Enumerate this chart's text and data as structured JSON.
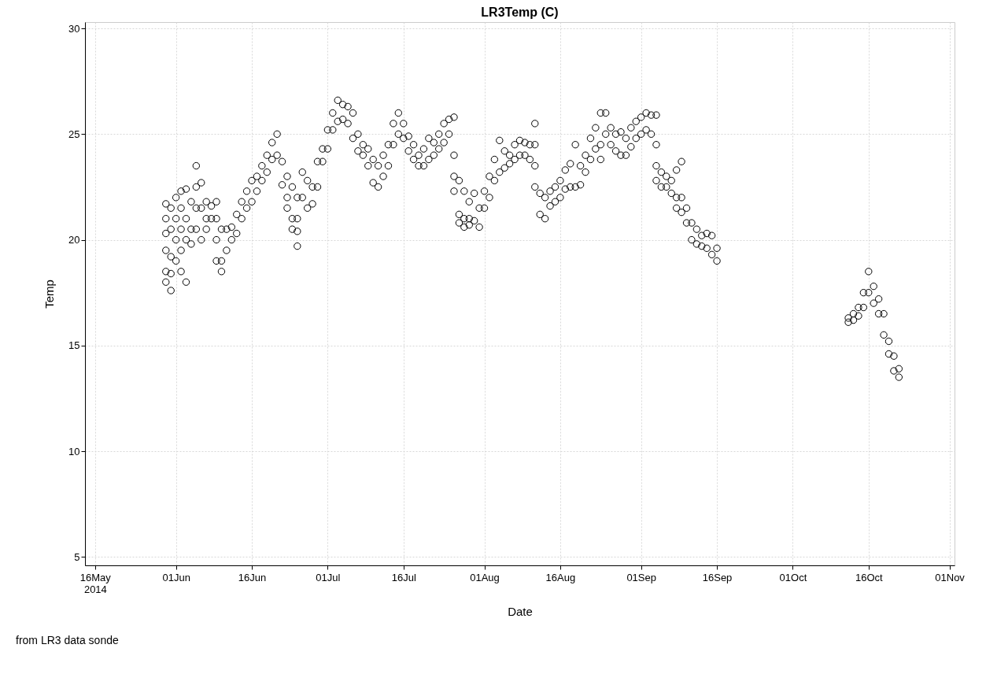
{
  "chart_data": {
    "type": "scatter",
    "title": "LR3Temp (C)",
    "xlabel": "Date",
    "ylabel": "Temp",
    "annotations": [
      "from LR3 data sonde"
    ],
    "xlim": [
      "2014-05-14",
      "2014-11-02"
    ],
    "ylim": [
      4.6,
      30.3
    ],
    "xticks": [
      {
        "value": "2014-05-16",
        "label": "16May 2014"
      },
      {
        "value": "2014-06-01",
        "label": "01Jun"
      },
      {
        "value": "2014-06-16",
        "label": "16Jun"
      },
      {
        "value": "2014-07-01",
        "label": "01Jul"
      },
      {
        "value": "2014-07-16",
        "label": "16Jul"
      },
      {
        "value": "2014-08-01",
        "label": "01Aug"
      },
      {
        "value": "2014-08-16",
        "label": "16Aug"
      },
      {
        "value": "2014-09-01",
        "label": "01Sep"
      },
      {
        "value": "2014-09-16",
        "label": "16Sep"
      },
      {
        "value": "2014-10-01",
        "label": "01Oct"
      },
      {
        "value": "2014-10-16",
        "label": "16Oct"
      },
      {
        "value": "2014-11-01",
        "label": "01Nov"
      }
    ],
    "yticks": [
      5,
      10,
      15,
      20,
      25,
      30
    ],
    "grid": true,
    "marker": "circle",
    "legend": false,
    "series": [
      {
        "color": "#000000",
        "x": [
          "2014-05-30",
          "2014-05-30",
          "2014-05-30",
          "2014-05-30",
          "2014-05-30",
          "2014-05-30",
          "2014-05-31",
          "2014-05-31",
          "2014-05-31",
          "2014-05-31",
          "2014-05-31",
          "2014-06-01",
          "2014-06-01",
          "2014-06-01",
          "2014-06-01",
          "2014-06-02",
          "2014-06-02",
          "2014-06-02",
          "2014-06-02",
          "2014-06-02",
          "2014-06-03",
          "2014-06-03",
          "2014-06-03",
          "2014-06-03",
          "2014-06-04",
          "2014-06-04",
          "2014-06-04",
          "2014-06-05",
          "2014-06-05",
          "2014-06-05",
          "2014-06-05",
          "2014-06-06",
          "2014-06-06",
          "2014-06-06",
          "2014-06-07",
          "2014-06-07",
          "2014-06-07",
          "2014-06-08",
          "2014-06-08",
          "2014-06-09",
          "2014-06-09",
          "2014-06-09",
          "2014-06-09",
          "2014-06-10",
          "2014-06-10",
          "2014-06-10",
          "2014-06-11",
          "2014-06-11",
          "2014-06-12",
          "2014-06-12",
          "2014-06-13",
          "2014-06-13",
          "2014-06-14",
          "2014-06-14",
          "2014-06-15",
          "2014-06-15",
          "2014-06-16",
          "2014-06-16",
          "2014-06-17",
          "2014-06-17",
          "2014-06-18",
          "2014-06-18",
          "2014-06-19",
          "2014-06-19",
          "2014-06-20",
          "2014-06-20",
          "2014-06-21",
          "2014-06-21",
          "2014-06-22",
          "2014-06-22",
          "2014-06-23",
          "2014-06-23",
          "2014-06-23",
          "2014-06-24",
          "2014-06-24",
          "2014-06-24",
          "2014-06-25",
          "2014-06-25",
          "2014-06-25",
          "2014-06-25",
          "2014-06-26",
          "2014-06-26",
          "2014-06-27",
          "2014-06-27",
          "2014-06-28",
          "2014-06-28",
          "2014-06-29",
          "2014-06-29",
          "2014-06-30",
          "2014-06-30",
          "2014-07-01",
          "2014-07-01",
          "2014-07-02",
          "2014-07-02",
          "2014-07-03",
          "2014-07-03",
          "2014-07-04",
          "2014-07-04",
          "2014-07-05",
          "2014-07-05",
          "2014-07-06",
          "2014-07-06",
          "2014-07-07",
          "2014-07-07",
          "2014-07-08",
          "2014-07-08",
          "2014-07-09",
          "2014-07-09",
          "2014-07-10",
          "2014-07-10",
          "2014-07-11",
          "2014-07-11",
          "2014-07-12",
          "2014-07-12",
          "2014-07-13",
          "2014-07-13",
          "2014-07-14",
          "2014-07-14",
          "2014-07-15",
          "2014-07-15",
          "2014-07-16",
          "2014-07-16",
          "2014-07-17",
          "2014-07-17",
          "2014-07-18",
          "2014-07-18",
          "2014-07-19",
          "2014-07-19",
          "2014-07-20",
          "2014-07-20",
          "2014-07-21",
          "2014-07-21",
          "2014-07-22",
          "2014-07-22",
          "2014-07-23",
          "2014-07-23",
          "2014-07-24",
          "2014-07-24",
          "2014-07-25",
          "2014-07-25",
          "2014-07-26",
          "2014-07-26",
          "2014-07-26",
          "2014-07-26",
          "2014-07-27",
          "2014-07-27",
          "2014-07-27",
          "2014-07-28",
          "2014-07-28",
          "2014-07-28",
          "2014-07-29",
          "2014-07-29",
          "2014-07-29",
          "2014-07-30",
          "2014-07-30",
          "2014-07-31",
          "2014-07-31",
          "2014-08-01",
          "2014-08-01",
          "2014-08-02",
          "2014-08-02",
          "2014-08-03",
          "2014-08-03",
          "2014-08-04",
          "2014-08-04",
          "2014-08-05",
          "2014-08-05",
          "2014-08-06",
          "2014-08-06",
          "2014-08-07",
          "2014-08-07",
          "2014-08-08",
          "2014-08-08",
          "2014-08-09",
          "2014-08-09",
          "2014-08-10",
          "2014-08-10",
          "2014-08-11",
          "2014-08-11",
          "2014-08-11",
          "2014-08-11",
          "2014-08-12",
          "2014-08-12",
          "2014-08-13",
          "2014-08-13",
          "2014-08-14",
          "2014-08-14",
          "2014-08-15",
          "2014-08-15",
          "2014-08-16",
          "2014-08-16",
          "2014-08-17",
          "2014-08-17",
          "2014-08-18",
          "2014-08-18",
          "2014-08-19",
          "2014-08-19",
          "2014-08-20",
          "2014-08-20",
          "2014-08-21",
          "2014-08-21",
          "2014-08-22",
          "2014-08-22",
          "2014-08-23",
          "2014-08-23",
          "2014-08-24",
          "2014-08-24",
          "2014-08-24",
          "2014-08-25",
          "2014-08-25",
          "2014-08-26",
          "2014-08-26",
          "2014-08-27",
          "2014-08-27",
          "2014-08-28",
          "2014-08-28",
          "2014-08-29",
          "2014-08-29",
          "2014-08-30",
          "2014-08-30",
          "2014-08-31",
          "2014-08-31",
          "2014-09-01",
          "2014-09-01",
          "2014-09-02",
          "2014-09-02",
          "2014-09-03",
          "2014-09-03",
          "2014-09-04",
          "2014-09-04",
          "2014-09-04",
          "2014-09-04",
          "2014-09-05",
          "2014-09-05",
          "2014-09-06",
          "2014-09-06",
          "2014-09-07",
          "2014-09-07",
          "2014-09-08",
          "2014-09-08",
          "2014-09-08",
          "2014-09-09",
          "2014-09-09",
          "2014-09-09",
          "2014-09-10",
          "2014-09-10",
          "2014-09-11",
          "2014-09-11",
          "2014-09-12",
          "2014-09-12",
          "2014-09-13",
          "2014-09-13",
          "2014-09-14",
          "2014-09-14",
          "2014-09-15",
          "2014-09-15",
          "2014-09-16",
          "2014-09-16",
          "2014-10-12",
          "2014-10-12",
          "2014-10-13",
          "2014-10-13",
          "2014-10-14",
          "2014-10-14",
          "2014-10-15",
          "2014-10-15",
          "2014-10-16",
          "2014-10-16",
          "2014-10-17",
          "2014-10-17",
          "2014-10-18",
          "2014-10-18",
          "2014-10-19",
          "2014-10-19",
          "2014-10-20",
          "2014-10-20",
          "2014-10-21",
          "2014-10-21",
          "2014-10-22",
          "2014-10-22"
        ],
        "values": [
          21.7,
          21.0,
          20.3,
          19.5,
          18.5,
          18.0,
          21.5,
          20.5,
          19.2,
          18.4,
          17.6,
          22.0,
          21.0,
          20.0,
          19.0,
          22.3,
          21.5,
          20.5,
          19.5,
          18.5,
          22.4,
          21.0,
          20.0,
          18.0,
          21.8,
          20.5,
          19.8,
          23.5,
          22.5,
          21.5,
          20.5,
          22.7,
          21.5,
          20.0,
          21.8,
          21.0,
          20.5,
          21.6,
          21.0,
          21.8,
          21.0,
          20.0,
          19.0,
          20.5,
          19.0,
          18.5,
          19.5,
          20.5,
          20.6,
          20.0,
          21.2,
          20.3,
          21.8,
          21.0,
          22.3,
          21.5,
          22.8,
          21.8,
          23.0,
          22.3,
          23.5,
          22.8,
          24.0,
          23.2,
          24.6,
          23.8,
          25.0,
          24.0,
          23.7,
          22.6,
          23.0,
          22.0,
          21.5,
          22.5,
          21.0,
          20.5,
          22.0,
          21.0,
          20.4,
          19.7,
          23.2,
          22.0,
          22.8,
          21.5,
          22.5,
          21.7,
          23.7,
          22.5,
          24.3,
          23.7,
          25.2,
          24.3,
          26.0,
          25.2,
          26.6,
          25.6,
          26.4,
          25.7,
          26.3,
          25.5,
          26.0,
          24.8,
          25.0,
          24.2,
          24.5,
          24.0,
          24.3,
          23.5,
          23.8,
          22.7,
          23.5,
          22.5,
          24.0,
          23.0,
          24.5,
          23.5,
          25.5,
          24.5,
          26.0,
          25.0,
          25.5,
          24.8,
          24.9,
          24.2,
          24.5,
          23.8,
          24.0,
          23.5,
          24.3,
          23.5,
          24.8,
          23.8,
          24.6,
          24.0,
          25.0,
          24.3,
          25.5,
          24.6,
          25.7,
          25.0,
          25.8,
          24.0,
          23.0,
          22.3,
          22.8,
          21.2,
          20.8,
          22.3,
          21.0,
          20.6,
          21.8,
          21.0,
          20.7,
          22.2,
          20.9,
          21.5,
          20.6,
          22.3,
          21.5,
          23.0,
          22.0,
          23.8,
          22.8,
          24.7,
          23.2,
          24.2,
          23.4,
          24.0,
          23.6,
          24.5,
          23.8,
          24.7,
          24.0,
          24.6,
          24.0,
          24.5,
          23.8,
          25.5,
          24.5,
          23.5,
          22.5,
          22.2,
          21.2,
          22.0,
          21.0,
          22.3,
          21.6,
          22.5,
          21.8,
          22.8,
          22.0,
          23.3,
          22.4,
          23.6,
          22.5,
          24.5,
          22.5,
          23.5,
          22.6,
          24.0,
          23.2,
          24.8,
          23.8,
          25.3,
          24.3,
          26.0,
          24.5,
          23.8,
          26.0,
          25.0,
          25.3,
          24.5,
          25.0,
          24.2,
          25.1,
          24.0,
          24.8,
          24.0,
          25.3,
          24.4,
          25.6,
          24.8,
          25.8,
          25.0,
          26.0,
          25.2,
          25.9,
          25.0,
          25.9,
          24.5,
          23.5,
          22.8,
          23.2,
          22.5,
          23.0,
          22.5,
          22.8,
          22.2,
          23.3,
          22.0,
          21.5,
          23.7,
          22.0,
          21.3,
          21.5,
          20.8,
          20.8,
          20.0,
          20.5,
          19.8,
          20.2,
          19.7,
          20.3,
          19.6,
          20.2,
          19.3,
          19.6,
          19.0,
          16.3,
          16.1,
          16.5,
          16.2,
          16.8,
          16.4,
          17.5,
          16.8,
          18.5,
          17.5,
          17.8,
          17.0,
          17.2,
          16.5,
          16.5,
          15.5,
          15.2,
          14.6,
          14.5,
          13.8,
          13.9,
          13.5
        ]
      }
    ]
  }
}
